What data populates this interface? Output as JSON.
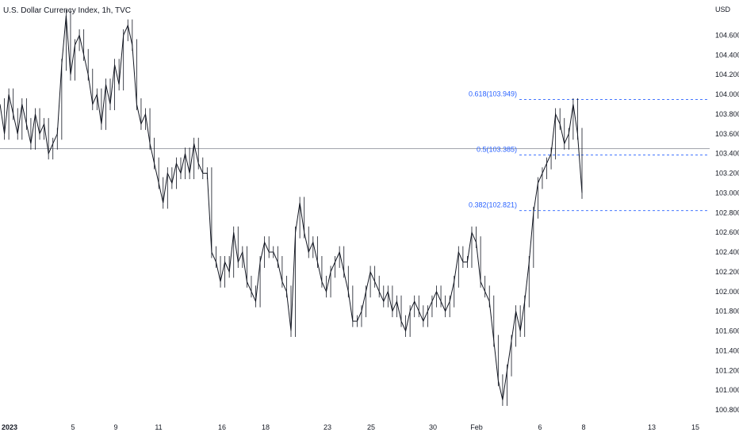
{
  "header": {
    "title": "U.S. Dollar Currency Index, 1h, TVC",
    "currency": "USD"
  },
  "chart_data": {
    "type": "line",
    "title": "U.S. Dollar Currency Index, 1h, TVC",
    "y_unit": "USD",
    "ylim": [
      100.8,
      104.7
    ],
    "y_ticks": [
      "100.800",
      "101.000",
      "101.200",
      "101.400",
      "101.600",
      "101.800",
      "102.000",
      "102.200",
      "102.400",
      "102.600",
      "102.800",
      "103.000",
      "103.200",
      "103.400",
      "103.600",
      "103.800",
      "104.000",
      "104.200",
      "104.400",
      "104.600"
    ],
    "x_ticks": [
      "2023",
      "5",
      "9",
      "11",
      "16",
      "18",
      "23",
      "25",
      "30",
      "Feb",
      "6",
      "8",
      "13",
      "15"
    ],
    "series": [
      {
        "values": [
          103.9,
          103.6,
          104.0,
          103.8,
          103.6,
          103.9,
          103.7,
          103.5,
          103.8,
          103.6,
          103.7,
          103.4,
          103.5,
          103.6,
          104.3,
          104.8,
          104.2,
          104.5,
          104.6,
          104.4,
          104.2,
          103.9,
          104.0,
          103.7,
          104.1,
          103.9,
          104.3,
          104.1,
          104.6,
          104.7,
          104.5,
          103.9,
          103.7,
          103.8,
          103.5,
          103.3,
          103.1,
          102.9,
          103.2,
          103.1,
          103.3,
          103.2,
          103.4,
          103.2,
          103.5,
          103.3,
          103.2,
          103.2,
          102.4,
          102.3,
          102.1,
          102.3,
          102.2,
          102.6,
          102.3,
          102.4,
          102.1,
          102.0,
          101.9,
          102.3,
          102.5,
          102.4,
          102.4,
          102.3,
          102.1,
          102.0,
          101.6,
          102.6,
          102.9,
          102.6,
          102.4,
          102.5,
          102.3,
          102.1,
          102.0,
          102.2,
          102.3,
          102.4,
          102.2,
          102.0,
          101.7,
          101.7,
          101.8,
          102.0,
          102.2,
          102.1,
          102.0,
          101.9,
          102.0,
          101.8,
          101.9,
          101.7,
          101.6,
          101.8,
          101.9,
          101.8,
          101.7,
          101.8,
          101.9,
          102.0,
          101.9,
          101.8,
          101.9,
          102.1,
          102.4,
          102.3,
          102.3,
          102.6,
          102.5,
          102.1,
          102.0,
          101.9,
          101.5,
          101.1,
          100.9,
          101.2,
          101.5,
          101.8,
          101.6,
          101.9,
          102.3,
          102.8,
          103.1,
          103.2,
          103.3,
          103.4,
          103.8,
          103.7,
          103.5,
          103.6,
          103.9,
          103.6,
          103.0
        ],
        "x_range_label": "2023 → 8 Feb"
      }
    ],
    "horizontal_line": {
      "value": 103.45
    },
    "fibonacci": [
      {
        "label": "0.618(103.949)",
        "value": 103.949
      },
      {
        "label": "0.5(103.385)",
        "value": 103.385
      },
      {
        "label": "0.382(102.821)",
        "value": 102.821
      }
    ],
    "colors": {
      "price": "#131722",
      "fib": "#2962ff",
      "hline": "#9598a1",
      "grid": "#f0f3fa"
    }
  }
}
